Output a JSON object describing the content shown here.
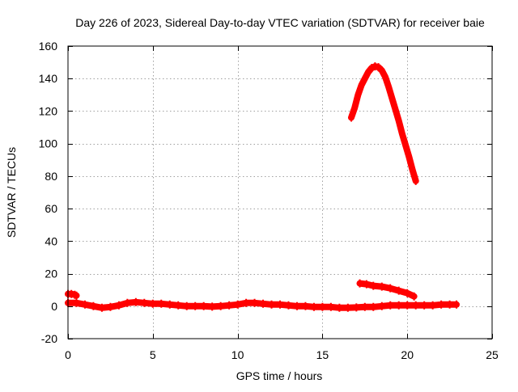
{
  "chart_data": {
    "type": "line",
    "title": "Day 226 of 2023, Sidereal Day-to-day VTEC variation (SDTVAR) for receiver baie",
    "xlabel": "GPS time / hours",
    "ylabel": "SDTVAR / TECUs",
    "xlim": [
      0,
      25
    ],
    "ylim": [
      -20,
      160
    ],
    "xticks": [
      0,
      5,
      10,
      15,
      20,
      25
    ],
    "yticks": [
      -20,
      0,
      20,
      40,
      60,
      80,
      100,
      120,
      140,
      160
    ],
    "grid": true,
    "legend": "none",
    "series_color": "#ff0000",
    "series": [
      {
        "name": "baseline",
        "points": [
          [
            0.0,
            2.0
          ],
          [
            0.5,
            2.0
          ],
          [
            1.0,
            1.0
          ],
          [
            1.5,
            0.0
          ],
          [
            2.0,
            -1.0
          ],
          [
            2.5,
            -0.5
          ],
          [
            3.0,
            0.5
          ],
          [
            3.5,
            2.0
          ],
          [
            4.0,
            2.5
          ],
          [
            4.5,
            2.0
          ],
          [
            5.0,
            1.5
          ],
          [
            5.5,
            1.5
          ],
          [
            6.0,
            1.0
          ],
          [
            6.5,
            0.5
          ],
          [
            7.0,
            0.0
          ],
          [
            7.5,
            0.0
          ],
          [
            8.0,
            0.0
          ],
          [
            8.5,
            -0.3
          ],
          [
            9.0,
            0.0
          ],
          [
            9.5,
            0.5
          ],
          [
            10.0,
            1.0
          ],
          [
            10.5,
            2.0
          ],
          [
            11.0,
            2.0
          ],
          [
            11.5,
            1.5
          ],
          [
            12.0,
            1.0
          ],
          [
            12.5,
            1.0
          ],
          [
            13.0,
            0.5
          ],
          [
            13.5,
            0.0
          ],
          [
            14.0,
            0.0
          ],
          [
            14.5,
            -0.5
          ],
          [
            15.0,
            -0.5
          ],
          [
            15.5,
            -0.5
          ],
          [
            16.0,
            -1.0
          ],
          [
            16.5,
            -1.0
          ],
          [
            17.0,
            -0.8
          ],
          [
            17.5,
            -0.5
          ],
          [
            18.0,
            -0.5
          ],
          [
            18.5,
            0.0
          ],
          [
            19.0,
            0.5
          ],
          [
            19.5,
            0.5
          ],
          [
            20.0,
            0.5
          ],
          [
            20.5,
            0.5
          ],
          [
            21.0,
            0.5
          ],
          [
            21.5,
            0.5
          ],
          [
            22.0,
            1.0
          ],
          [
            22.5,
            1.0
          ],
          [
            22.9,
            1.0
          ]
        ]
      },
      {
        "name": "early segment",
        "points": [
          [
            0.0,
            7.5
          ],
          [
            0.2,
            7.5
          ],
          [
            0.4,
            7.0
          ],
          [
            0.5,
            6.5
          ]
        ]
      },
      {
        "name": "descending segment",
        "points": [
          [
            17.2,
            14.0
          ],
          [
            17.6,
            13.5
          ],
          [
            18.0,
            12.5
          ],
          [
            18.5,
            12.0
          ],
          [
            19.0,
            11.0
          ],
          [
            19.5,
            9.5
          ],
          [
            20.0,
            8.0
          ],
          [
            20.4,
            6.0
          ]
        ]
      },
      {
        "name": "arc segment",
        "points": [
          [
            16.7,
            116.0
          ],
          [
            16.9,
            122.0
          ],
          [
            17.1,
            130.0
          ],
          [
            17.3,
            136.0
          ],
          [
            17.5,
            140.0
          ],
          [
            17.7,
            144.0
          ],
          [
            17.9,
            146.5
          ],
          [
            18.1,
            147.5
          ],
          [
            18.3,
            147.0
          ],
          [
            18.5,
            145.0
          ],
          [
            18.7,
            141.0
          ],
          [
            18.9,
            135.0
          ],
          [
            19.1,
            128.0
          ],
          [
            19.3,
            121.0
          ],
          [
            19.5,
            114.0
          ],
          [
            19.7,
            106.0
          ],
          [
            19.9,
            99.0
          ],
          [
            20.1,
            92.0
          ],
          [
            20.3,
            84.0
          ],
          [
            20.5,
            77.0
          ]
        ]
      }
    ]
  }
}
